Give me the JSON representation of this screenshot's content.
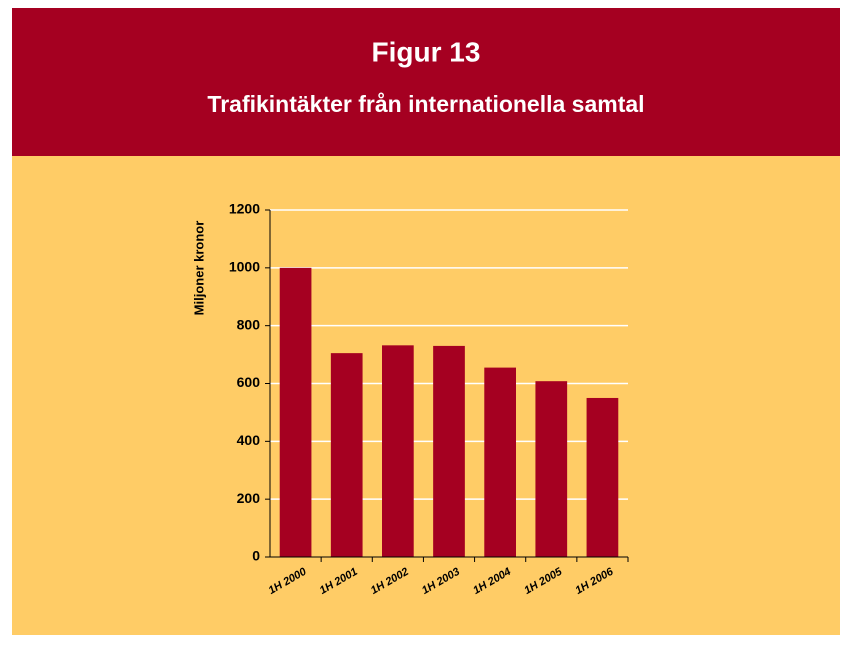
{
  "chart_data": {
    "type": "bar",
    "title": "Figur 13",
    "subtitle": "Trafikintäkter från internationella samtal",
    "y_label": "Miljoner kronor",
    "categories": [
      "1H 2000",
      "1H 2001",
      "1H 2002",
      "1H 2003",
      "1H 2004",
      "1H 2005",
      "1H 2006"
    ],
    "values": [
      1000,
      705,
      732,
      730,
      655,
      608,
      550
    ],
    "color": "#a50021",
    "ylim": [
      0,
      1200
    ],
    "yticks": [
      0,
      200,
      400,
      600,
      800,
      1000,
      1200
    ],
    "grid": true
  }
}
